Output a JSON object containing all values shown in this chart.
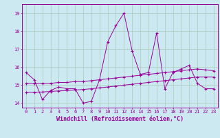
{
  "xlabel": "Windchill (Refroidissement éolien,°C)",
  "bg_color": "#cce8f0",
  "grid_color": "#aaccbb",
  "line_color": "#990099",
  "x_ticks": [
    0,
    1,
    2,
    3,
    4,
    5,
    6,
    7,
    8,
    9,
    10,
    11,
    12,
    13,
    14,
    15,
    16,
    17,
    18,
    19,
    20,
    21,
    22,
    23
  ],
  "ylim": [
    13.75,
    19.5
  ],
  "xlim": [
    -0.5,
    23.5
  ],
  "yticks": [
    14,
    15,
    16,
    17,
    18,
    19
  ],
  "series1_x": [
    0,
    1,
    2,
    3,
    4,
    5,
    6,
    7,
    8,
    9,
    10,
    11,
    12,
    13,
    14,
    15,
    16,
    17,
    18,
    19,
    20,
    21,
    22,
    23
  ],
  "series1_y": [
    15.7,
    15.3,
    14.2,
    14.7,
    14.9,
    14.8,
    14.8,
    14.0,
    14.1,
    15.3,
    17.4,
    18.3,
    19.0,
    16.9,
    15.6,
    15.7,
    17.9,
    14.8,
    15.7,
    15.9,
    16.1,
    15.1,
    14.8,
    14.8
  ],
  "series2_x": [
    0,
    1,
    2,
    3,
    4,
    5,
    6,
    7,
    8,
    9,
    10,
    11,
    12,
    13,
    14,
    15,
    16,
    17,
    18,
    19,
    20,
    21,
    22,
    23
  ],
  "series2_y": [
    15.1,
    15.1,
    15.1,
    15.1,
    15.15,
    15.15,
    15.2,
    15.2,
    15.25,
    15.3,
    15.35,
    15.4,
    15.45,
    15.5,
    15.55,
    15.6,
    15.65,
    15.7,
    15.75,
    15.8,
    15.85,
    15.9,
    15.85,
    15.8
  ],
  "series3_x": [
    0,
    1,
    2,
    3,
    4,
    5,
    6,
    7,
    8,
    9,
    10,
    11,
    12,
    13,
    14,
    15,
    16,
    17,
    18,
    19,
    20,
    21,
    22,
    23
  ],
  "series3_y": [
    14.6,
    14.6,
    14.62,
    14.65,
    14.68,
    14.7,
    14.73,
    14.76,
    14.8,
    14.85,
    14.9,
    14.95,
    15.0,
    15.05,
    15.1,
    15.15,
    15.2,
    15.25,
    15.3,
    15.35,
    15.4,
    15.45,
    15.45,
    15.45
  ],
  "tick_fontsize": 5,
  "xlabel_fontsize": 6,
  "marker_size": 2.5
}
